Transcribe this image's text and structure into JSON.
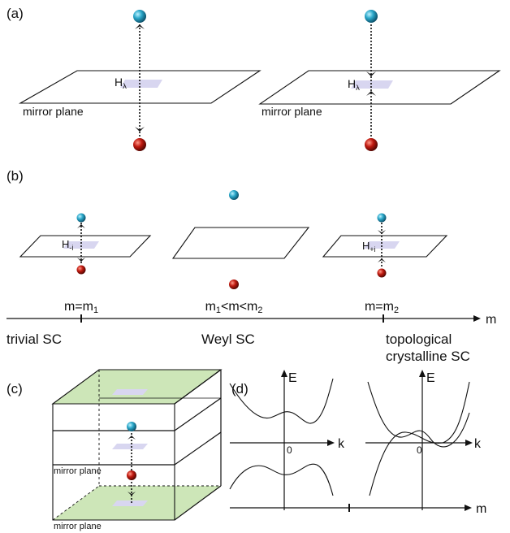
{
  "panel_a": {
    "label": "(a)",
    "left": {
      "hamiltonian": {
        "parts": [
          "H",
          "λ"
        ]
      },
      "plane_label": "mirror plane"
    },
    "right": {
      "hamiltonian": {
        "parts": [
          "H",
          "λ"
        ]
      },
      "plane_label": "mirror plane"
    }
  },
  "panel_b": {
    "label": "(b)",
    "left_hamiltonian": {
      "parts": [
        "H",
        "-i"
      ]
    },
    "right_hamiltonian": {
      "parts": [
        "H",
        "+i"
      ]
    },
    "axis_label": "m",
    "points": [
      {
        "parts": [
          "m=m",
          "1"
        ]
      },
      {
        "parts": [
          "m",
          "1",
          "<m<m",
          "2"
        ]
      },
      {
        "parts": [
          "m=m",
          "2"
        ]
      }
    ],
    "phases": [
      {
        "lines": [
          "trivial SC"
        ]
      },
      {
        "lines": [
          "Weyl SC"
        ]
      },
      {
        "lines": [
          "topological",
          "crystalline SC"
        ]
      }
    ]
  },
  "panel_c": {
    "label": "(c)",
    "plane_labels": [
      "mirror plane",
      "mirror plane"
    ]
  },
  "panel_d": {
    "label": "(d)",
    "left": {
      "energy": "E",
      "momentum": "k",
      "origin": "0"
    },
    "right": {
      "energy": "E",
      "momentum": "k",
      "origin": "0"
    },
    "axis_label": "m"
  }
}
